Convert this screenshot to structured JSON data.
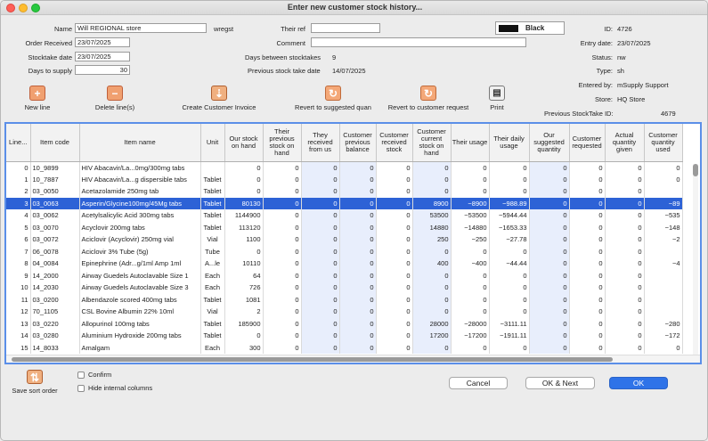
{
  "window": {
    "title": "Enter new customer stock history..."
  },
  "form": {
    "name_label": "Name",
    "name_value": "Will REGIONAL store",
    "name_code": "wregst",
    "order_received_label": "Order Received",
    "order_received_value": "23/07/2025",
    "stocktake_date_label": "Stocktake date",
    "stocktake_date_value": "23/07/2025",
    "days_to_supply_label": "Days to supply",
    "days_to_supply_value": "30",
    "their_ref_label": "Their ref",
    "their_ref_value": "",
    "comment_label": "Comment",
    "comment_value": "",
    "days_between_label": "Days between stocktakes",
    "days_between_value": "9",
    "prev_stocktake_label": "Previous stock take date",
    "prev_stocktake_value": "14/07/2025",
    "color_name": "Black"
  },
  "info": {
    "id_label": "ID:",
    "id_value": "4726",
    "entry_date_label": "Entry date:",
    "entry_date_value": "23/07/2025",
    "status_label": "Status:",
    "status_value": "nw",
    "type_label": "Type:",
    "type_value": "sh",
    "entered_by_label": "Entered by:",
    "entered_by_value": "mSupply Support",
    "store_label": "Store:",
    "store_value": "HQ Store",
    "prev_id_label": "Previous StockTake ID:",
    "prev_id_value": "4679"
  },
  "toolbar": {
    "new_line": "New line",
    "delete_lines": "Delete line(s)",
    "create_invoice": "Create Customer Invoice",
    "revert_suggested": "Revert to suggested quan",
    "revert_request": "Revert to customer request",
    "print": "Print"
  },
  "table": {
    "columns": [
      "Line...",
      "Item code",
      "Item name",
      "Unit",
      "Our stock on hand",
      "Their previous stock on hand",
      "They received from us",
      "Customer previous balance",
      "Customer received stock",
      "Customer current stock on hand",
      "Their usage",
      "Their daily usage",
      "Our suggested quantity",
      "Customer requested",
      "Actual quantity given",
      "Customer quantity used"
    ],
    "rows": [
      [
        "0",
        "10_9899",
        "HIV Abacavir/La...0mg/300mg tabs",
        "",
        "0",
        "0",
        "0",
        "0",
        "0",
        "0",
        "0",
        "0",
        "0",
        "0",
        "0",
        "0"
      ],
      [
        "1",
        "10_7887",
        "HIV Abacavir/La...g dispersible tabs",
        "Tablet",
        "0",
        "0",
        "0",
        "0",
        "0",
        "0",
        "0",
        "0",
        "0",
        "0",
        "0",
        "0"
      ],
      [
        "2",
        "03_0050",
        "Acetazolamide 250mg tab",
        "Tablet",
        "0",
        "0",
        "0",
        "0",
        "0",
        "0",
        "0",
        "0",
        "0",
        "0",
        "0",
        ""
      ],
      [
        "3",
        "03_0063",
        "Asperin/Glycine100mg/45Mg tabs",
        "Tablet",
        "80130",
        "0",
        "0",
        "0",
        "0",
        "8900",
        "−8900",
        "−988.89",
        "0",
        "0",
        "0",
        "−89"
      ],
      [
        "4",
        "03_0062",
        "Acetylsalicylic Acid 300mg tabs",
        "Tablet",
        "1144900",
        "0",
        "0",
        "0",
        "0",
        "53500",
        "−53500",
        "−5944.44",
        "0",
        "0",
        "0",
        "−535"
      ],
      [
        "5",
        "03_0070",
        "Acyclovir 200mg tabs",
        "Tablet",
        "113120",
        "0",
        "0",
        "0",
        "0",
        "14880",
        "−14880",
        "−1653.33",
        "0",
        "0",
        "0",
        "−148"
      ],
      [
        "6",
        "03_0072",
        "Aciclovir (Acyclovir) 250mg vial",
        "Vial",
        "1100",
        "0",
        "0",
        "0",
        "0",
        "250",
        "−250",
        "−27.78",
        "0",
        "0",
        "0",
        "−2"
      ],
      [
        "7",
        "06_0078",
        "Aciclovir 3% Tube (5g)",
        "Tube",
        "0",
        "0",
        "0",
        "0",
        "0",
        "0",
        "0",
        "0",
        "0",
        "0",
        "0",
        ""
      ],
      [
        "8",
        "04_0084",
        "Epinephrine (Adr...g/1ml Amp 1ml",
        "A...le",
        "10110",
        "0",
        "0",
        "0",
        "0",
        "400",
        "−400",
        "−44.44",
        "0",
        "0",
        "0",
        "−4"
      ],
      [
        "9",
        "14_2000",
        "Airway Guedels Autoclavable Size 1",
        "Each",
        "64",
        "0",
        "0",
        "0",
        "0",
        "0",
        "0",
        "0",
        "0",
        "0",
        "0",
        ""
      ],
      [
        "10",
        "14_2030",
        "Airway Guedels Autoclavable Size 3",
        "Each",
        "726",
        "0",
        "0",
        "0",
        "0",
        "0",
        "0",
        "0",
        "0",
        "0",
        "0",
        ""
      ],
      [
        "11",
        "03_0200",
        "Albendazole scored 400mg tabs",
        "Tablet",
        "1081",
        "0",
        "0",
        "0",
        "0",
        "0",
        "0",
        "0",
        "0",
        "0",
        "0",
        ""
      ],
      [
        "12",
        "70_1105",
        "CSL Bovine Albumin 22% 10ml",
        "Vial",
        "2",
        "0",
        "0",
        "0",
        "0",
        "0",
        "0",
        "0",
        "0",
        "0",
        "0",
        ""
      ],
      [
        "13",
        "03_0220",
        "Allopurinol 100mg tabs",
        "Tablet",
        "185900",
        "0",
        "0",
        "0",
        "0",
        "28000",
        "−28000",
        "−3111.11",
        "0",
        "0",
        "0",
        "−280"
      ],
      [
        "14",
        "03_0280",
        "Aluminium Hydroxide 200mg tabs",
        "Tablet",
        "0",
        "0",
        "0",
        "0",
        "0",
        "17200",
        "−17200",
        "−1911.11",
        "0",
        "0",
        "0",
        "−172"
      ],
      [
        "15",
        "14_8033",
        "Amalgam",
        "Each",
        "300",
        "0",
        "0",
        "0",
        "0",
        "0",
        "0",
        "0",
        "0",
        "0",
        "0",
        "0"
      ]
    ]
  },
  "footer": {
    "save_sort": "Save sort order",
    "confirm": "Confirm",
    "hide_internal": "Hide internal columns",
    "cancel": "Cancel",
    "ok_next": "OK & Next",
    "ok": "OK"
  }
}
